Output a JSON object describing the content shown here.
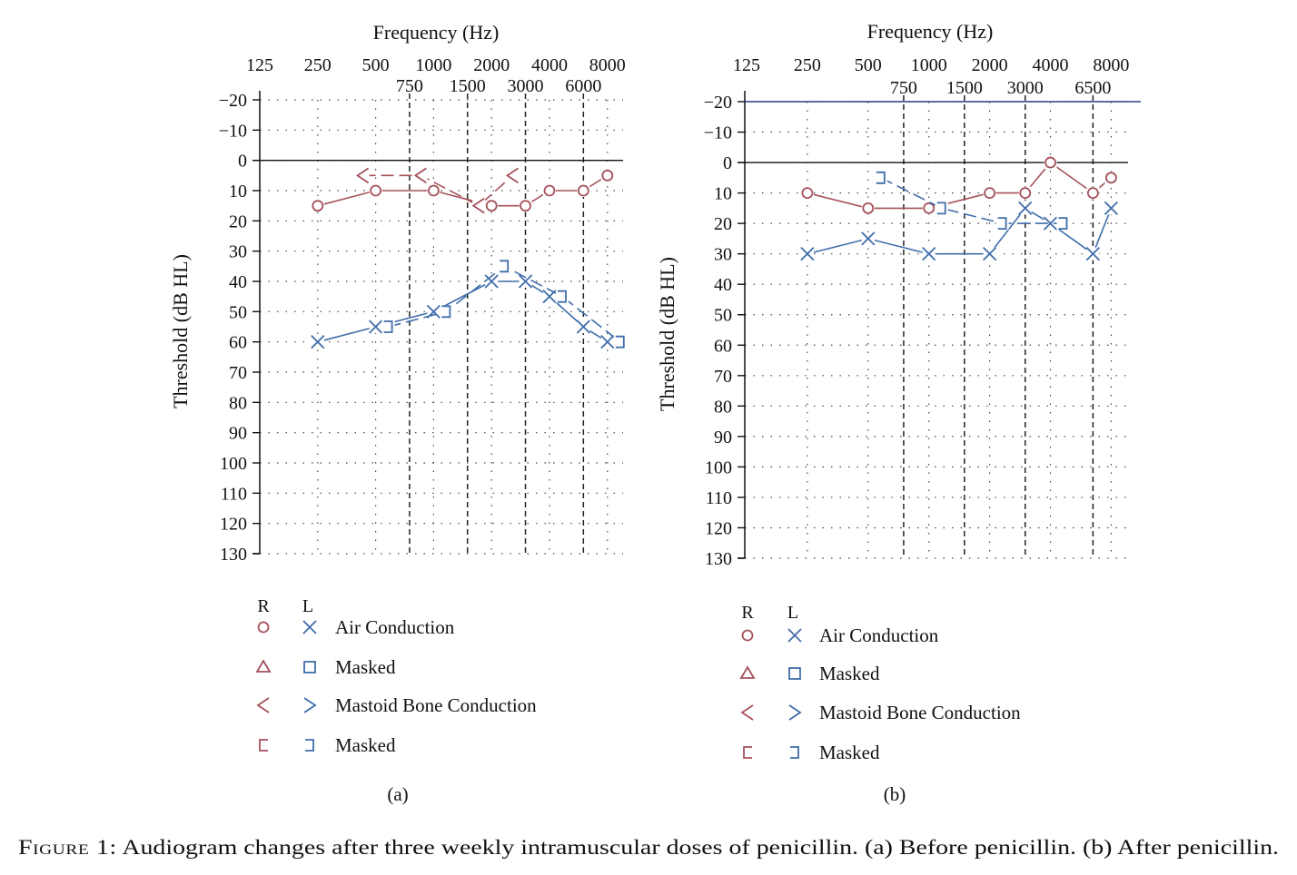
{
  "colors": {
    "right": "#a5515a",
    "left": "#3f6daa",
    "axis": "#111111",
    "grid": "#444444",
    "ref_line": "#2c3f8a"
  },
  "figure": {
    "label": "Figure 1:",
    "caption": "Audiogram changes after three weekly intramuscular doses of penicillin. (a) Before penicillin. (b) After penicillin."
  },
  "legend": {
    "headers": {
      "right": "R",
      "left": "L"
    },
    "rows": [
      {
        "label": "Air Conduction",
        "right_icon": "circle-icon",
        "left_icon": "x-icon"
      },
      {
        "label": "Masked",
        "right_icon": "triangle-icon",
        "left_icon": "square-icon"
      },
      {
        "label": "Mastoid Bone Conduction",
        "right_icon": "less-than-icon",
        "left_icon": "greater-than-icon"
      },
      {
        "label": "Masked",
        "right_icon": "open-bracket-right-icon",
        "left_icon": "open-bracket-left-icon"
      }
    ]
  },
  "chart_data": [
    {
      "type": "line",
      "panel": "(a)",
      "xlabel": "Frequency (Hz)",
      "ylabel": "Threshold (dB HL)",
      "x_ticks_top": [
        "125",
        "250",
        "500",
        "1000",
        "2000",
        "4000",
        "8000"
      ],
      "x_ticks_mid": [
        "750",
        "1500",
        "3000",
        "6000"
      ],
      "y_ticks": [
        "−20",
        "−10",
        "0",
        "10",
        "20",
        "30",
        "40",
        "50",
        "60",
        "70",
        "80",
        "90",
        "100",
        "110",
        "120",
        "130"
      ],
      "ylim": [
        -20,
        130
      ],
      "y_inverted": true,
      "x_scale": "log2 (octave)",
      "grid": "dotted",
      "series": [
        {
          "ear": "right",
          "kind": "air",
          "marker": "circle",
          "points": [
            [
              250,
              15
            ],
            [
              500,
              10
            ],
            [
              1000,
              10
            ],
            [
              2000,
              15
            ],
            [
              3000,
              15
            ],
            [
              4000,
              10
            ],
            [
              6000,
              10
            ],
            [
              8000,
              5
            ]
          ]
        },
        {
          "ear": "right",
          "kind": "bone",
          "marker": "less-than",
          "points": [
            [
              500,
              5
            ],
            [
              1000,
              5
            ],
            [
              2000,
              15
            ],
            [
              3000,
              5
            ]
          ]
        },
        {
          "ear": "left",
          "kind": "air",
          "marker": "x",
          "points": [
            [
              250,
              60
            ],
            [
              500,
              55
            ],
            [
              1000,
              50
            ],
            [
              2000,
              40
            ],
            [
              3000,
              40
            ],
            [
              4000,
              45
            ],
            [
              6000,
              55
            ],
            [
              8000,
              60
            ]
          ]
        },
        {
          "ear": "left",
          "kind": "bone-masked",
          "marker": "open-bracket-left",
          "points": [
            [
              500,
              55
            ],
            [
              1000,
              50
            ],
            [
              2000,
              35
            ],
            [
              4000,
              45
            ],
            [
              8000,
              60
            ]
          ]
        }
      ]
    },
    {
      "type": "line",
      "panel": "(b)",
      "xlabel": "Frequency (Hz)",
      "ylabel": "Threshold (dB HL)",
      "x_ticks_top": [
        "125",
        "250",
        "500",
        "1000",
        "2000",
        "4000",
        "8000"
      ],
      "x_ticks_mid": [
        "750",
        "1500",
        "3000",
        "6500"
      ],
      "y_ticks": [
        "−20",
        "−10",
        "0",
        "10",
        "20",
        "30",
        "40",
        "50",
        "60",
        "70",
        "80",
        "90",
        "100",
        "110",
        "120",
        "130"
      ],
      "ylim": [
        -20,
        130
      ],
      "y_inverted": true,
      "x_scale": "log2 (octave)",
      "grid": "dotted",
      "series": [
        {
          "ear": "right",
          "kind": "air",
          "marker": "circle",
          "points": [
            [
              250,
              10
            ],
            [
              500,
              15
            ],
            [
              1000,
              15
            ],
            [
              2000,
              10
            ],
            [
              3000,
              10
            ],
            [
              4000,
              0
            ],
            [
              6500,
              10
            ],
            [
              8000,
              5
            ]
          ]
        },
        {
          "ear": "left",
          "kind": "air",
          "marker": "x",
          "points": [
            [
              250,
              30
            ],
            [
              500,
              25
            ],
            [
              1000,
              30
            ],
            [
              2000,
              30
            ],
            [
              3000,
              15
            ],
            [
              4000,
              20
            ],
            [
              6500,
              30
            ],
            [
              8000,
              15
            ]
          ]
        },
        {
          "ear": "left",
          "kind": "bone-masked",
          "marker": "open-bracket-left",
          "points": [
            [
              500,
              5
            ],
            [
              1000,
              15
            ],
            [
              2000,
              20
            ],
            [
              4000,
              20
            ]
          ]
        }
      ]
    }
  ]
}
